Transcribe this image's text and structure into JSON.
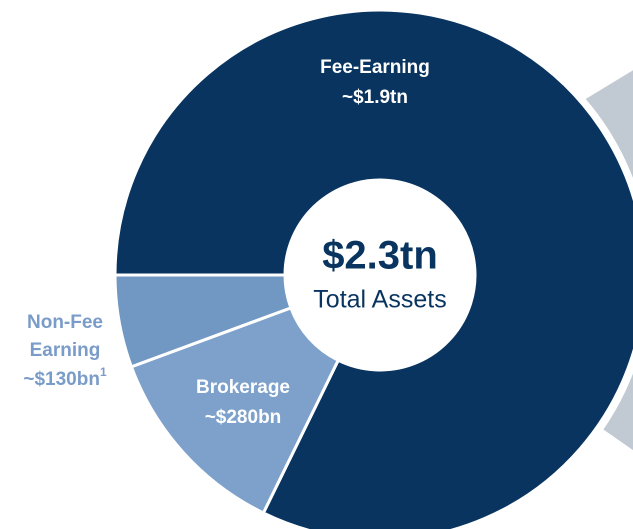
{
  "chart_data": {
    "type": "donut",
    "categories": [
      [
        "Fee-Earning"
      ],
      [
        "Brokerage"
      ],
      [
        "Non-Fee",
        "Earning"
      ]
    ],
    "values": [
      1900,
      280,
      130
    ],
    "value_labels": [
      "~$1.9tn",
      "~$280bn",
      "~$130bn"
    ],
    "footnotes": [
      null,
      null,
      "1"
    ],
    "colors": [
      "#08345f",
      "#7ea1cc",
      "#7197c3"
    ],
    "label_colors": [
      "#ffffff",
      "#ffffff",
      "#7a9cc8"
    ],
    "center_value": "$2.3tn",
    "center_label": "Total Assets",
    "center_color": "#08345f"
  }
}
